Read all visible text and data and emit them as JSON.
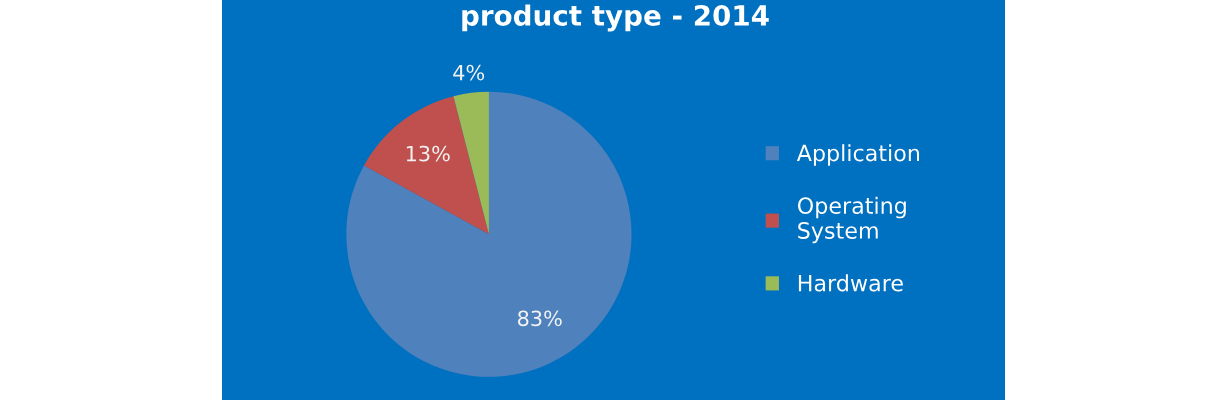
{
  "chart_data": {
    "type": "pie",
    "title": "product type - 2014",
    "categories": [
      "Application",
      "Operating System",
      "Hardware"
    ],
    "values": [
      83,
      13,
      4
    ],
    "colors": [
      "#4f81bd",
      "#c0504d",
      "#9bbb59"
    ],
    "value_labels": [
      "83%",
      "13%",
      "4%"
    ],
    "legend": "right"
  }
}
